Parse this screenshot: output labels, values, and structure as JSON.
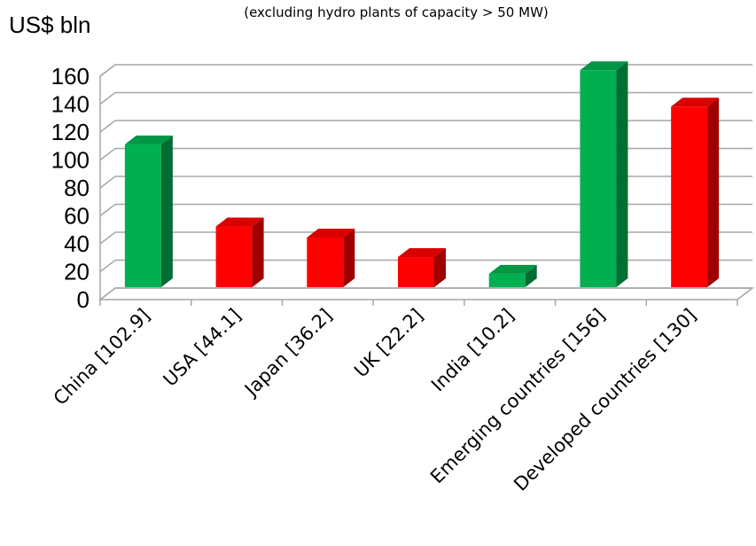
{
  "chart_data": {
    "type": "bar",
    "subtitle": "(excluding hydro plants of capacity > 50 MW)",
    "ylabel": "US$ bln",
    "categories": [
      "China [102.9]",
      "USA [44.1]",
      "Japan [36.2]",
      "UK [22.2]",
      "India [10.2]",
      "Emerging countries [156]",
      "Developed countries [130]"
    ],
    "values": [
      102.9,
      44.1,
      36.2,
      22.2,
      10.2,
      156,
      130
    ],
    "bar_groups": [
      "emerging",
      "developed",
      "developed",
      "developed",
      "emerging",
      "emerging",
      "developed"
    ],
    "colors": {
      "emerging": "#00b050",
      "developed": "#ff0000"
    },
    "ylim": [
      0,
      160
    ],
    "yticks": [
      0,
      20,
      40,
      60,
      80,
      100,
      120,
      140,
      160
    ],
    "grid": true,
    "legend": "none"
  }
}
